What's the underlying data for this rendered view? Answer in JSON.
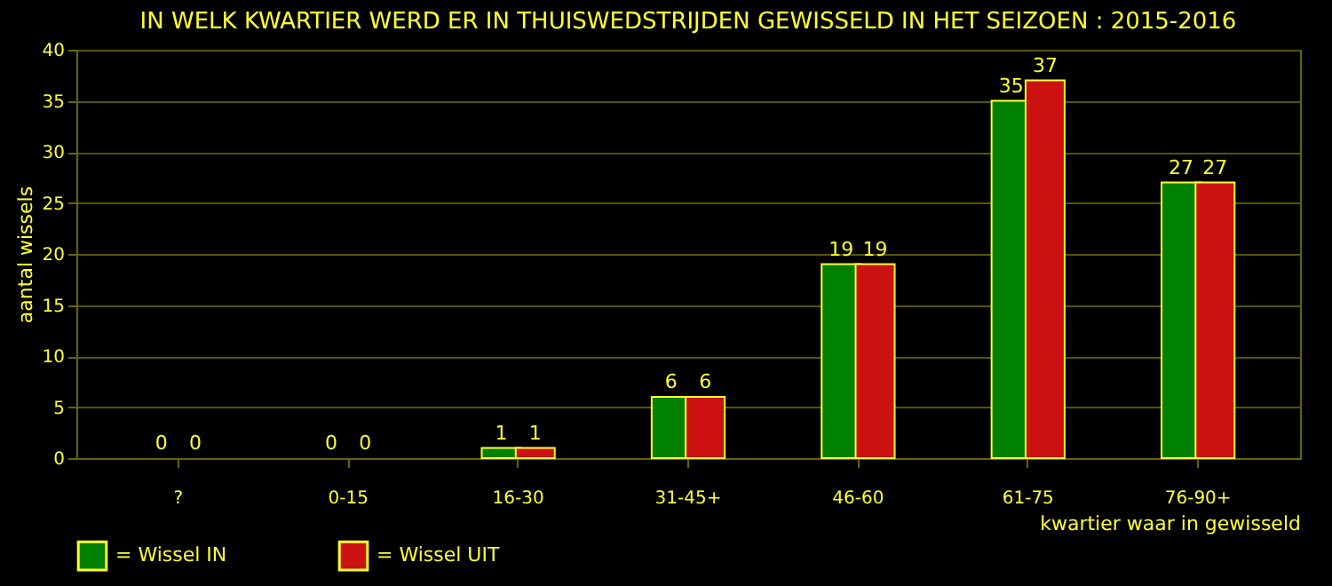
{
  "chart_data": {
    "type": "bar",
    "title": "IN WELK KWARTIER WERD ER IN THUISWEDSTRIJDEN GEWISSELD IN HET SEIZOEN : 2015-2016",
    "xlabel": "kwartier waar in gewisseld",
    "ylabel": "aantal wissels",
    "categories": [
      "?",
      "0-15",
      "16-30",
      "31-45+",
      "46-60",
      "61-75",
      "76-90+"
    ],
    "series": [
      {
        "name": "= Wissel IN",
        "color": "#008000",
        "values": [
          0,
          0,
          1,
          6,
          19,
          35,
          27
        ]
      },
      {
        "name": "= Wissel UIT",
        "color": "#cc1111",
        "values": [
          0,
          0,
          1,
          6,
          19,
          37,
          27
        ]
      }
    ],
    "ylim": [
      0,
      40
    ],
    "yticks": [
      0,
      5,
      10,
      15,
      20,
      25,
      30,
      35,
      40
    ],
    "grid": "y",
    "legend": "bottom",
    "data_labels": true
  }
}
